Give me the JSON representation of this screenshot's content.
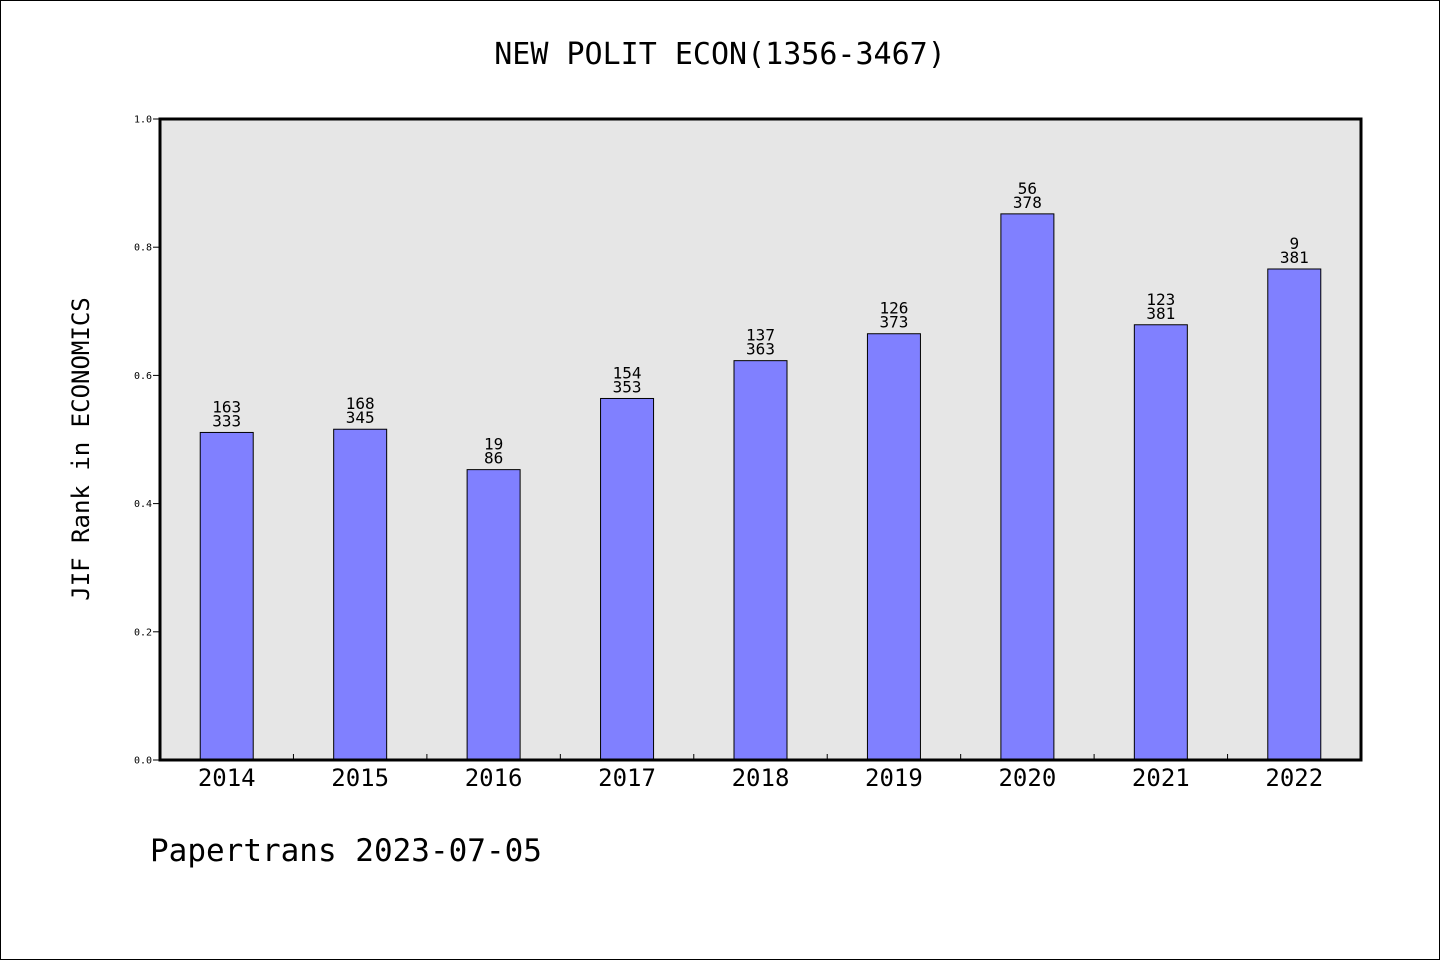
{
  "chart_data": {
    "type": "bar",
    "title": "NEW POLIT ECON(1356-3467)",
    "xlabel": "",
    "ylabel": "JIF Rank in ECONOMICS",
    "categories": [
      "2014",
      "2015",
      "2016",
      "2017",
      "2018",
      "2019",
      "2020",
      "2021",
      "2022"
    ],
    "values": [
      0.511,
      0.516,
      0.453,
      0.564,
      0.623,
      0.665,
      0.852,
      0.679,
      0.766
    ],
    "labels_top": [
      "163",
      "168",
      "19",
      "154",
      "137",
      "126",
      "56",
      "123",
      "9"
    ],
    "labels_bottom": [
      "333",
      "345",
      "86",
      "353",
      "363",
      "373",
      "378",
      "381",
      "381"
    ],
    "ylim": [
      0,
      1.0
    ],
    "yticks": [
      "0.0",
      "0.2",
      "0.4",
      "0.6",
      "0.8",
      "1.0"
    ],
    "grid": false,
    "bar_color": "#8080ff",
    "plot_bg": "#e6e6e6"
  },
  "footer": "Papertrans 2023-07-05"
}
